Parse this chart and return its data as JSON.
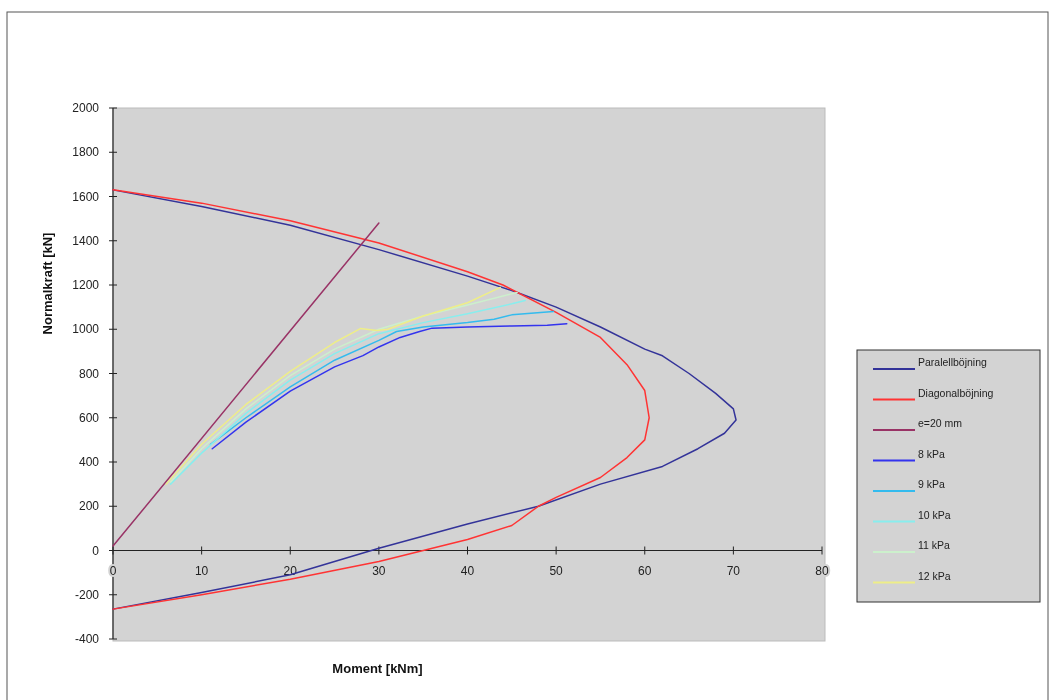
{
  "chart_data": {
    "type": "line",
    "xlabel": "Moment [kNm]",
    "ylabel": "Normalkraft [kN]",
    "xlim": [
      0,
      80
    ],
    "ylim": [
      -400,
      2000
    ],
    "xticks": [
      0,
      10,
      20,
      30,
      40,
      50,
      60,
      70,
      80
    ],
    "yticks": [
      -400,
      -200,
      0,
      200,
      400,
      600,
      800,
      1000,
      1200,
      1400,
      1600,
      1800,
      2000
    ],
    "grid": false,
    "legend": "right",
    "marker": "none",
    "line_style": "solid",
    "series": [
      {
        "name": "Paralellböjning",
        "color": "#333399",
        "x": [
          0,
          10,
          20,
          30,
          40,
          45,
          50,
          55,
          60,
          62,
          65,
          68,
          70,
          70.3,
          69,
          66,
          62,
          55,
          48,
          40,
          30,
          20,
          10,
          0
        ],
        "values": [
          1630,
          1555,
          1470,
          1360,
          1240,
          1175,
          1100,
          1010,
          910,
          880,
          800,
          710,
          640,
          590,
          530,
          460,
          380,
          300,
          200,
          120,
          10,
          -110,
          -190,
          -265
        ]
      },
      {
        "name": "Diagonalböjning",
        "color": "#ff3333",
        "x": [
          0,
          10,
          20,
          30,
          40,
          44,
          50,
          55,
          58,
          60,
          60.5,
          60,
          58,
          55,
          50,
          48,
          45,
          40,
          35,
          30,
          20,
          10,
          0
        ],
        "values": [
          1630,
          1570,
          1490,
          1390,
          1260,
          1200,
          1076,
          963,
          840,
          723,
          600,
          500,
          420,
          330,
          240,
          200,
          113,
          50,
          0,
          -50,
          -130,
          -200,
          -265
        ]
      },
      {
        "name": "e=20 mm",
        "color": "#993366",
        "x": [
          0,
          30
        ],
        "values": [
          20,
          1480
        ]
      },
      {
        "name": "8 kPa",
        "color": "#3333ee",
        "x": [
          11.2,
          15,
          20,
          25,
          28.2,
          30,
          32.4,
          34.6,
          36,
          40,
          45,
          49,
          51.2
        ],
        "values": [
          460,
          580,
          720,
          830,
          881,
          920,
          963,
          990,
          1005,
          1010,
          1015,
          1018,
          1025
        ]
      },
      {
        "name": "9 kPa",
        "color": "#33bbee",
        "x": [
          11,
          15,
          20,
          25,
          30,
          32,
          35,
          40,
          43,
          45,
          49.7
        ],
        "values": [
          480,
          600,
          740,
          860,
          950,
          990,
          1010,
          1030,
          1045,
          1065,
          1080
        ]
      },
      {
        "name": "10 kPa",
        "color": "#88eeee",
        "x": [
          6.5,
          10,
          15,
          20,
          25,
          30,
          35,
          40,
          45,
          46.5
        ],
        "values": [
          300,
          440,
          620,
          770,
          890,
          980,
          1030,
          1070,
          1115,
          1130
        ]
      },
      {
        "name": "11 kPa",
        "color": "#ccf0cc",
        "x": [
          6.5,
          10,
          15,
          20,
          25,
          30,
          35,
          40,
          45.6
        ],
        "values": [
          310,
          460,
          640,
          790,
          910,
          1000,
          1060,
          1110,
          1166
        ]
      },
      {
        "name": "12 kPa",
        "color": "#eeee88",
        "x": [
          6,
          10,
          15,
          20,
          25,
          27.9,
          29.8,
          31,
          35,
          40,
          43.7
        ],
        "values": [
          300,
          480,
          660,
          810,
          940,
          1003,
          994,
          1000,
          1060,
          1120,
          1189
        ]
      }
    ]
  }
}
